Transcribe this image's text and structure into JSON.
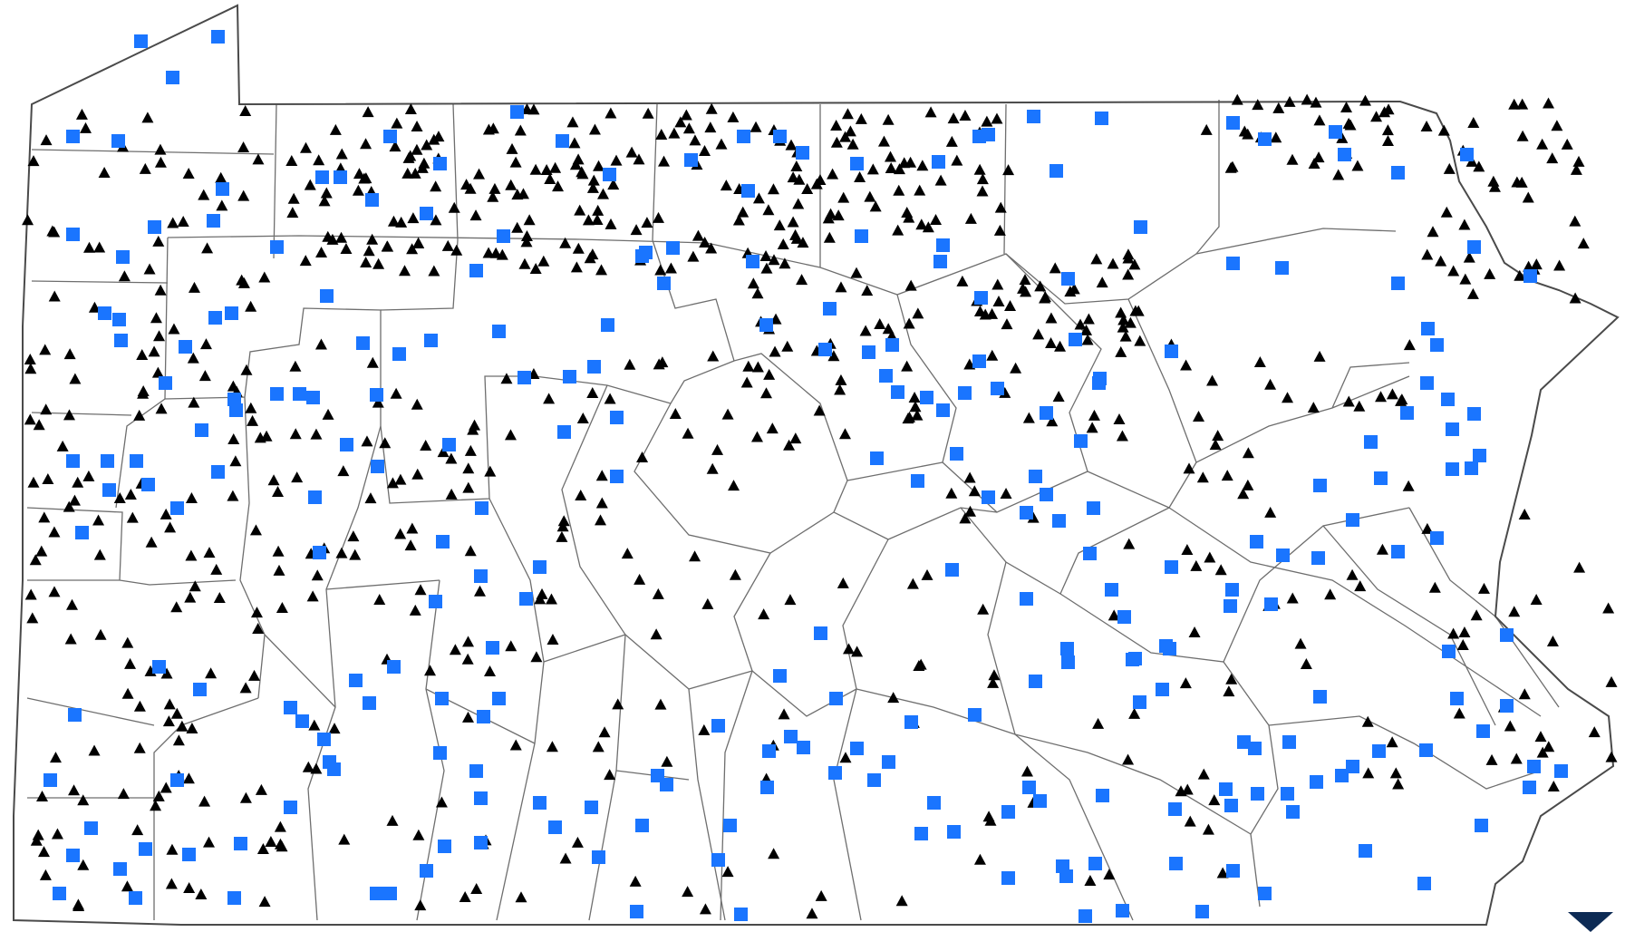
{
  "map": {
    "region": "Pennsylvania",
    "background_color": "#ffffff",
    "boundary_color": "#6e6e6e",
    "state_outline_color": "#4a4a4a",
    "marker_types": [
      {
        "id": "square",
        "shape": "square",
        "color": "#1a75ff"
      },
      {
        "id": "triangle",
        "shape": "triangle",
        "color": "#000000"
      }
    ],
    "corner_logo_color": "#0d2b55"
  }
}
